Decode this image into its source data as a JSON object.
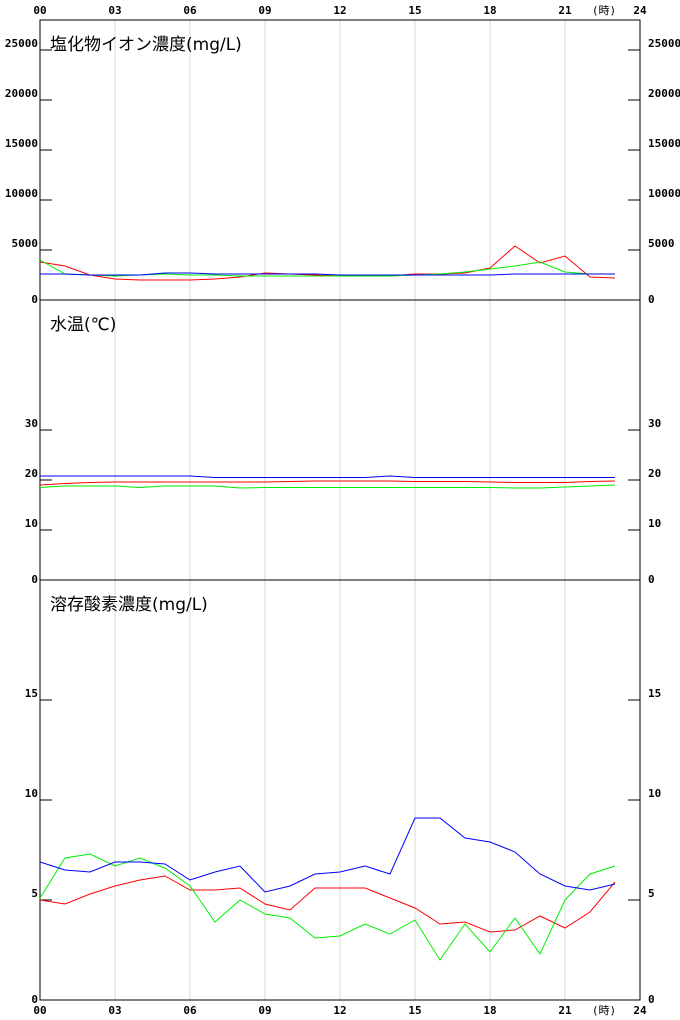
{
  "chart_data": [
    {
      "type": "line",
      "title": "塩化物イオン濃度(mg/L)",
      "x": [
        0,
        1,
        2,
        3,
        4,
        5,
        6,
        7,
        8,
        9,
        10,
        11,
        12,
        13,
        14,
        15,
        16,
        17,
        18,
        19,
        20,
        21,
        22,
        23
      ],
      "xlim": [
        0,
        24
      ],
      "xticks": [
        {
          "value": 0,
          "label": "00"
        },
        {
          "value": 3,
          "label": "03"
        },
        {
          "value": 6,
          "label": "06"
        },
        {
          "value": 9,
          "label": "09"
        },
        12,
        15,
        18,
        21,
        24
      ],
      "x_unit_label": "(時)",
      "ylim": [
        0,
        28000
      ],
      "yticks": [
        0,
        5000,
        10000,
        15000,
        20000,
        25000
      ],
      "grid": true,
      "series": [
        {
          "color": "#ff0000",
          "values": [
            3800,
            3400,
            2500,
            2100,
            2000,
            2000,
            2000,
            2100,
            2300,
            2700,
            2600,
            2500,
            2400,
            2400,
            2400,
            2600,
            2600,
            2700,
            3200,
            5400,
            3700,
            4400,
            2300,
            2200
          ]
        },
        {
          "color": "#00ee00",
          "values": [
            4000,
            2600,
            2500,
            2400,
            2500,
            2600,
            2500,
            2500,
            2400,
            2400,
            2400,
            2400,
            2400,
            2400,
            2400,
            2500,
            2600,
            2800,
            3100,
            3400,
            3800,
            2800,
            2600,
            2600
          ]
        },
        {
          "color": "#0000ff",
          "values": [
            2600,
            2600,
            2500,
            2500,
            2500,
            2700,
            2700,
            2600,
            2600,
            2600,
            2600,
            2600,
            2500,
            2500,
            2500,
            2500,
            2500,
            2500,
            2500,
            2600,
            2600,
            2600,
            2600,
            2600
          ]
        }
      ]
    },
    {
      "type": "line",
      "title": "水温(℃)",
      "x": [
        0,
        1,
        2,
        3,
        4,
        5,
        6,
        7,
        8,
        9,
        10,
        11,
        12,
        13,
        14,
        15,
        16,
        17,
        18,
        19,
        20,
        21,
        22,
        23
      ],
      "xlim": [
        0,
        24
      ],
      "ylim": [
        0,
        56
      ],
      "yticks": [
        0,
        10,
        20,
        30
      ],
      "grid": true,
      "series": [
        {
          "color": "#ff0000",
          "values": [
            19.0,
            19.3,
            19.5,
            19.6,
            19.6,
            19.6,
            19.6,
            19.6,
            19.6,
            19.6,
            19.7,
            19.8,
            19.8,
            19.8,
            19.8,
            19.7,
            19.7,
            19.7,
            19.6,
            19.5,
            19.5,
            19.5,
            19.7,
            19.8
          ]
        },
        {
          "color": "#00ee00",
          "values": [
            18.5,
            18.8,
            18.8,
            18.8,
            18.5,
            18.8,
            18.8,
            18.8,
            18.4,
            18.5,
            18.5,
            18.5,
            18.5,
            18.5,
            18.5,
            18.5,
            18.5,
            18.5,
            18.5,
            18.4,
            18.4,
            18.6,
            18.8,
            19.0
          ]
        },
        {
          "color": "#0000ff",
          "values": [
            20.8,
            20.8,
            20.8,
            20.8,
            20.8,
            20.8,
            20.8,
            20.5,
            20.5,
            20.5,
            20.5,
            20.5,
            20.5,
            20.5,
            20.8,
            20.5,
            20.5,
            20.5,
            20.5,
            20.5,
            20.5,
            20.5,
            20.5,
            20.5
          ]
        }
      ]
    },
    {
      "type": "line",
      "title": "溶存酸素濃度(mg/L)",
      "x": [
        0,
        1,
        2,
        3,
        4,
        5,
        6,
        7,
        8,
        9,
        10,
        11,
        12,
        13,
        14,
        15,
        16,
        17,
        18,
        19,
        20,
        21,
        22,
        23
      ],
      "xlim": [
        0,
        24
      ],
      "xticks": [
        {
          "value": 0,
          "label": "00"
        },
        {
          "value": 3,
          "label": "03"
        },
        {
          "value": 6,
          "label": "06"
        },
        {
          "value": 9,
          "label": "09"
        },
        12,
        15,
        18,
        21,
        24
      ],
      "x_unit_label": "(時)",
      "ylim": [
        0,
        21
      ],
      "yticks": [
        0,
        5,
        10,
        15
      ],
      "grid": true,
      "series": [
        {
          "color": "#ff0000",
          "values": [
            5.0,
            4.8,
            5.3,
            5.7,
            6.0,
            6.2,
            5.5,
            5.5,
            5.6,
            4.8,
            4.5,
            5.6,
            5.6,
            5.6,
            5.1,
            4.6,
            3.8,
            3.9,
            3.4,
            3.5,
            4.2,
            3.6,
            4.4,
            5.9
          ]
        },
        {
          "color": "#00ee00",
          "values": [
            5.1,
            7.1,
            7.3,
            6.7,
            7.1,
            6.6,
            5.7,
            3.9,
            5.0,
            4.3,
            4.1,
            3.1,
            3.2,
            3.8,
            3.3,
            4.0,
            2.0,
            3.8,
            2.4,
            4.1,
            2.3,
            5.0,
            6.3,
            6.7
          ]
        },
        {
          "color": "#0000ff",
          "values": [
            6.9,
            6.5,
            6.4,
            6.9,
            6.9,
            6.8,
            6.0,
            6.4,
            6.7,
            5.4,
            5.7,
            6.3,
            6.4,
            6.7,
            6.3,
            9.1,
            9.1,
            8.1,
            7.9,
            7.4,
            6.3,
            5.7,
            5.5,
            5.8
          ]
        }
      ]
    }
  ]
}
